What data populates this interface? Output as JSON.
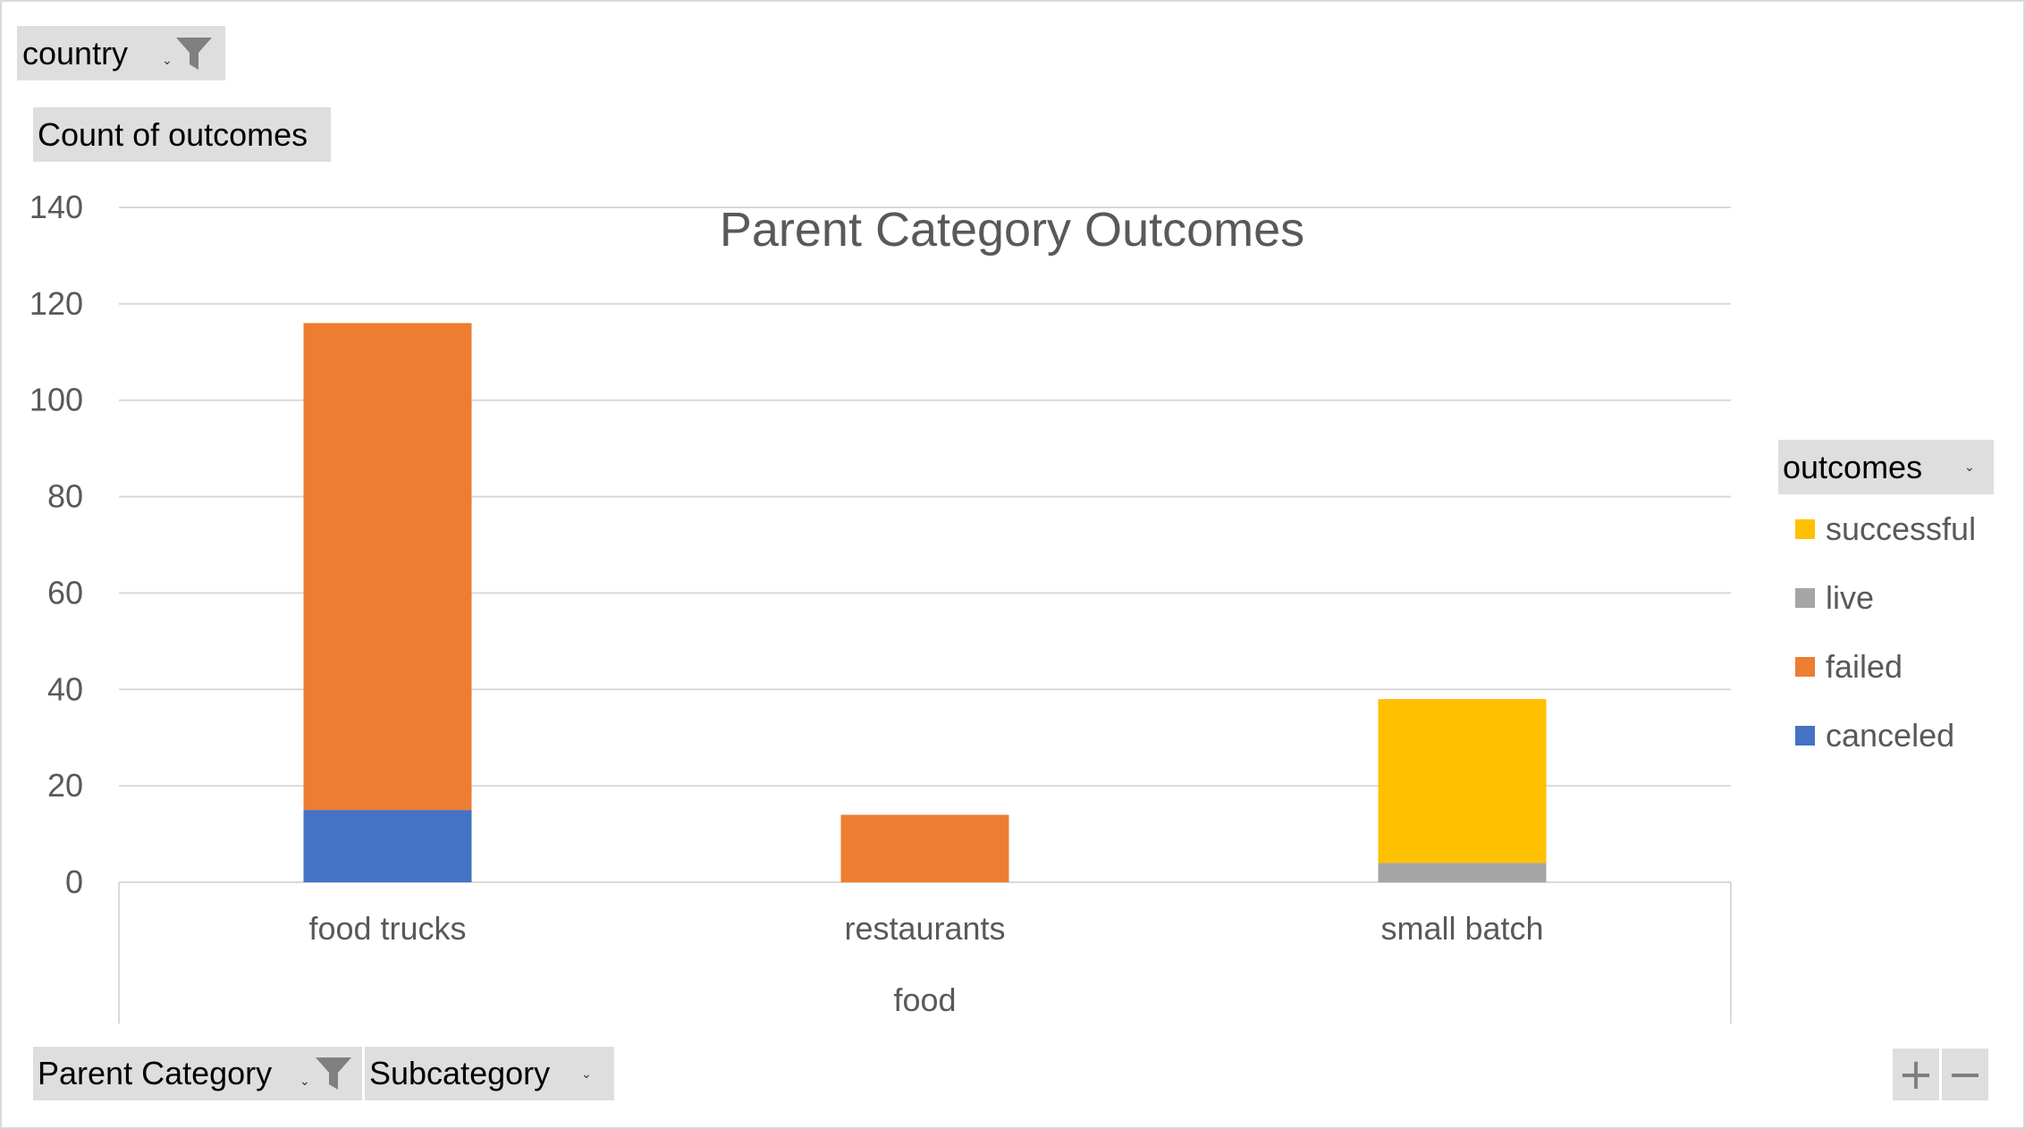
{
  "filters": {
    "country_label": "country",
    "count_label": "Count of outcomes",
    "parent_category_label": "Parent Category",
    "subcategory_label": "Subcategory",
    "legend_header": "outcomes"
  },
  "zoom": {
    "plus": "+",
    "minus": "−"
  },
  "chart_data": {
    "type": "bar",
    "stacked": true,
    "title": "Parent Category Outcomes",
    "categories": [
      "food trucks",
      "restaurants",
      "small batch"
    ],
    "group_label": "food",
    "series": [
      {
        "name": "canceled",
        "values": [
          15,
          0,
          0
        ],
        "color": "#4472c4"
      },
      {
        "name": "failed",
        "values": [
          101,
          14,
          0
        ],
        "color": "#ed7d31"
      },
      {
        "name": "live",
        "values": [
          0,
          0,
          4
        ],
        "color": "#a5a5a5"
      },
      {
        "name": "successful",
        "values": [
          0,
          0,
          34
        ],
        "color": "#ffc000"
      }
    ],
    "ylim": [
      0,
      140
    ],
    "yticks": [
      0,
      20,
      40,
      60,
      80,
      100,
      120,
      140
    ],
    "grid": true,
    "legend_position": "right"
  }
}
